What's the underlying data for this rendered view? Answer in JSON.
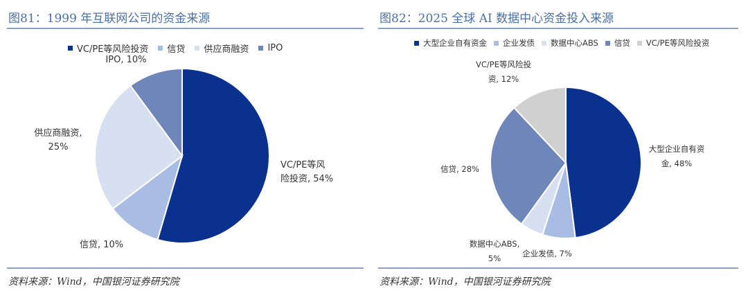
{
  "chart_data": [
    {
      "type": "pie",
      "title": "图81：1999 年互联网公司的资金来源",
      "legend_position": "top",
      "slices": [
        {
          "name": "VC/PE等风险投资",
          "value": 54,
          "color": "#0b318f",
          "label_lines": [
            "VC/PE等风",
            "险投资, 54%"
          ]
        },
        {
          "name": "信贷",
          "value": 10,
          "color": "#a9bce3",
          "label_lines": [
            "信贷, 10%"
          ]
        },
        {
          "name": "供应商融资",
          "value": 25,
          "color": "#d6e0f1",
          "label_lines": [
            "供应商融资,",
            "25%"
          ]
        },
        {
          "name": "IPO",
          "value": 10,
          "color": "#6f86bb",
          "label_lines": [
            "IPO, 10%"
          ]
        }
      ],
      "source": "资料来源：Wind，中国银河证券研究院"
    },
    {
      "type": "pie",
      "title": "图82：2025 全球 AI 数据中心资金投入来源",
      "legend_position": "top",
      "slices": [
        {
          "name": "大型企业自有资金",
          "value": 48,
          "color": "#0b318f",
          "label_lines": [
            "大型企业自有资",
            "金, 48%"
          ]
        },
        {
          "name": "企业发债",
          "value": 7,
          "color": "#a9bce3",
          "label_lines": [
            "企业发债, 7%"
          ]
        },
        {
          "name": "数据中心ABS",
          "value": 5,
          "color": "#d6e0f1",
          "label_lines": [
            "数据中心ABS,",
            "5%"
          ]
        },
        {
          "name": "信贷",
          "value": 28,
          "color": "#6f86bb",
          "label_lines": [
            "信贷, 28%"
          ]
        },
        {
          "name": "VC/PE等风险投资",
          "value": 12,
          "color": "#d0d0d0",
          "label_lines": [
            "VC/PE等风险投",
            "资, 12%"
          ]
        }
      ],
      "source": "资料来源：Wind，中国银河证券研究院"
    }
  ]
}
